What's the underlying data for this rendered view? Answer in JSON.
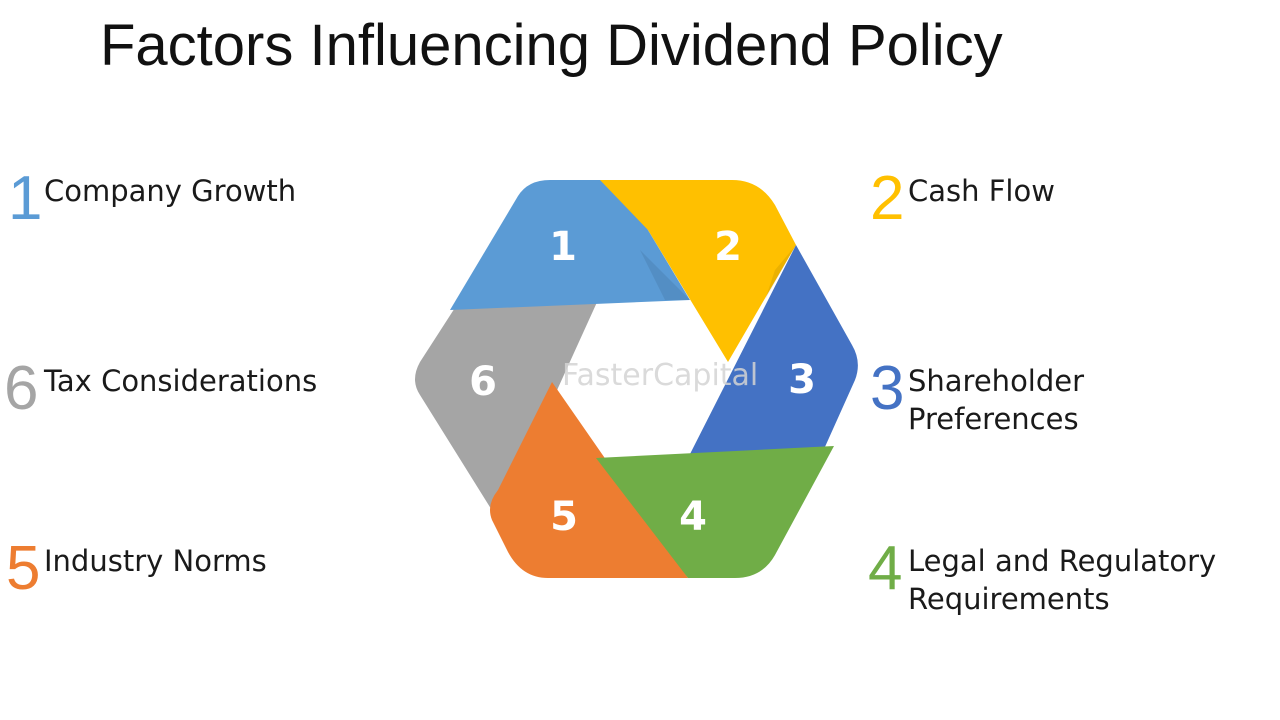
{
  "title": "Factors Influencing Dividend Policy",
  "watermark": "FasterCapital",
  "colors": {
    "f1": "#5b9bd5",
    "f2": "#ffc000",
    "f3": "#4472c4",
    "f4": "#70ad47",
    "f5": "#ed7d31",
    "f6": "#a5a5a5"
  },
  "factors": [
    {
      "number": "1",
      "line1": "Company Growth",
      "line2": ""
    },
    {
      "number": "2",
      "line1": "Cash Flow",
      "line2": ""
    },
    {
      "number": "3",
      "line1": "Shareholder",
      "line2": "Preferences"
    },
    {
      "number": "4",
      "line1": "Legal and Regulatory",
      "line2": "Requirements"
    },
    {
      "number": "5",
      "line1": "Industry Norms",
      "line2": ""
    },
    {
      "number": "6",
      "line1": "Tax Considerations",
      "line2": ""
    }
  ]
}
